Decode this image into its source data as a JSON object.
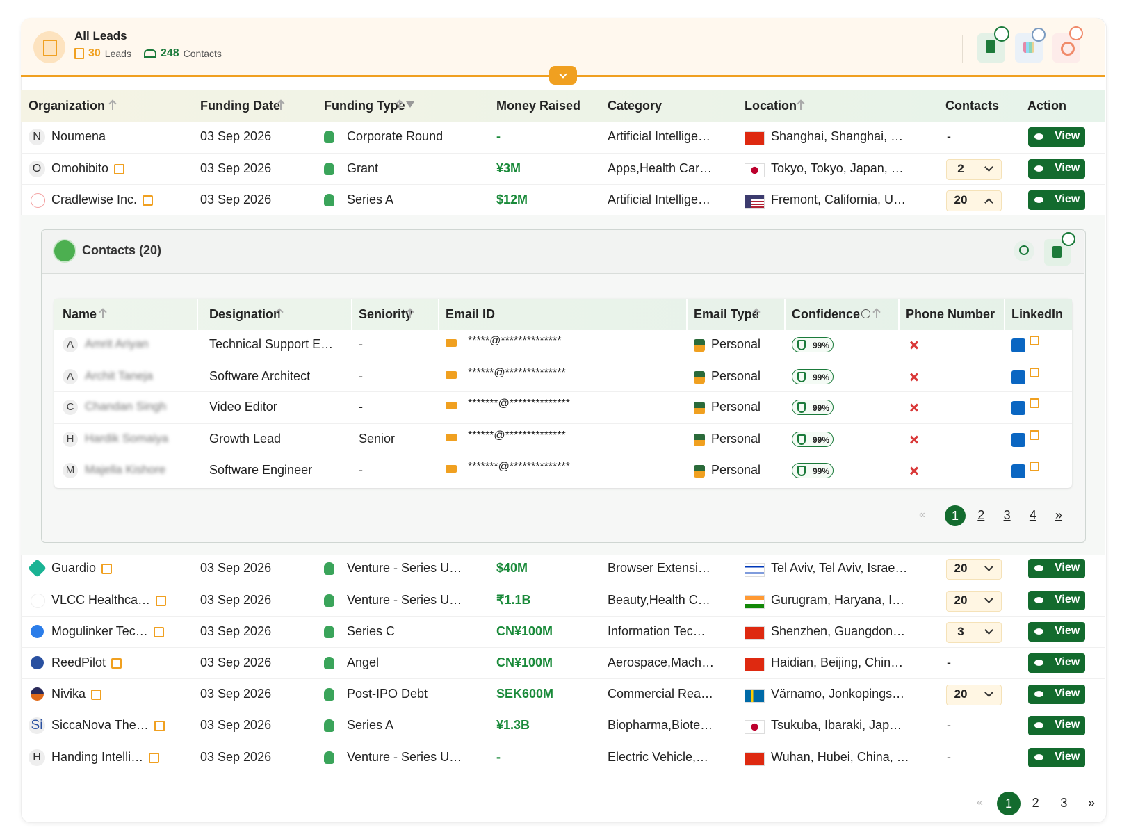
{
  "header": {
    "title": "All Leads",
    "leads_count": "30",
    "leads_label": "Leads",
    "contacts_count": "248",
    "contacts_label": "Contacts"
  },
  "table": {
    "columns": [
      "Organization",
      "Funding Date",
      "Funding Type",
      "Money Raised",
      "Category",
      "Location",
      "Contacts",
      "Action"
    ],
    "rows": [
      {
        "initial": "N",
        "organization": "Noumena",
        "funding_date": "03 Sep 2026",
        "funding_type": "Corporate Round",
        "money_raised": "-",
        "category": "Artificial Intellige…",
        "location": "Shanghai, Shanghai, …",
        "contacts": "-",
        "action": "View"
      },
      {
        "initial": "O",
        "organization": "Omohibito",
        "funding_date": "03 Sep 2026",
        "funding_type": "Grant",
        "money_raised": "¥3M",
        "category": "Apps,Health Car…",
        "location": "Tokyo, Tokyo, Japan, …",
        "contacts": "2",
        "action": "View"
      },
      {
        "organization": "Cradlewise Inc.",
        "funding_date": "03 Sep 2026",
        "funding_type": "Series A",
        "money_raised": "$12M",
        "category": "Artificial Intellige…",
        "location": "Fremont, California, U…",
        "contacts": "20",
        "action": "View"
      },
      {
        "organization": "Guardio",
        "funding_date": "03 Sep 2026",
        "funding_type": "Venture - Series U…",
        "money_raised": "$40M",
        "category": "Browser Extensi…",
        "location": "Tel Aviv, Tel Aviv, Israe…",
        "contacts": "20",
        "action": "View"
      },
      {
        "organization": "VLCC Healthca…",
        "funding_date": "03 Sep 2026",
        "funding_type": "Venture - Series U…",
        "money_raised": "₹1.1B",
        "category": "Beauty,Health C…",
        "location": "Gurugram, Haryana, I…",
        "contacts": "20",
        "action": "View"
      },
      {
        "organization": "Mogulinker Tec…",
        "funding_date": "03 Sep 2026",
        "funding_type": "Series C",
        "money_raised": "CN¥100M",
        "category": "Information Tec…",
        "location": "Shenzhen, Guangdon…",
        "contacts": "3",
        "action": "View"
      },
      {
        "organization": "ReedPilot",
        "funding_date": "03 Sep 2026",
        "funding_type": "Angel",
        "money_raised": "CN¥100M",
        "category": "Aerospace,Mach…",
        "location": "Haidian, Beijing, Chin…",
        "contacts": "-",
        "action": "View"
      },
      {
        "organization": "Nivika",
        "funding_date": "03 Sep 2026",
        "funding_type": "Post-IPO Debt",
        "money_raised": "SEK600M",
        "category": "Commercial Rea…",
        "location": "Värnamo, Jonkopings…",
        "contacts": "20",
        "action": "View"
      },
      {
        "initial": "Si",
        "organization": "SiccaNova The…",
        "funding_date": "03 Sep 2026",
        "funding_type": "Series A",
        "money_raised": "¥1.3B",
        "category": "Biopharma,Biote…",
        "location": "Tsukuba, Ibaraki, Jap…",
        "contacts": "-",
        "action": "View"
      },
      {
        "initial": "H",
        "organization": "Handing Intelli…",
        "funding_date": "03 Sep 2026",
        "funding_type": "Venture - Series U…",
        "money_raised": "-",
        "category": "Electric Vehicle,…",
        "location": "Wuhan, Hubei, China, …",
        "contacts": "-",
        "action": "View"
      }
    ]
  },
  "contacts_panel": {
    "title": "Contacts (20)",
    "columns": [
      "Name",
      "Designation",
      "Seniority",
      "Email ID",
      "Email Type",
      "Confidence",
      "Phone Number",
      "LinkedIn"
    ],
    "rows": [
      {
        "initial": "A",
        "name": "Amrit Ariyan",
        "designation": "Technical Support E…",
        "seniority": "-",
        "email": "*****@**************",
        "email_type": "Personal",
        "confidence": "99%"
      },
      {
        "initial": "A",
        "name": "Archit Taneja",
        "designation": "Software Architect",
        "seniority": "-",
        "email": "******@**************",
        "email_type": "Personal",
        "confidence": "99%"
      },
      {
        "initial": "C",
        "name": "Chandan Singh",
        "designation": "Video Editor",
        "seniority": "-",
        "email": "*******@**************",
        "email_type": "Personal",
        "confidence": "99%"
      },
      {
        "initial": "H",
        "name": "Hardik Somaiya",
        "designation": "Growth Lead",
        "seniority": "Senior",
        "email": "******@**************",
        "email_type": "Personal",
        "confidence": "99%"
      },
      {
        "initial": "M",
        "name": "Majella Kishore",
        "designation": "Software Engineer",
        "seniority": "-",
        "email": "*******@**************",
        "email_type": "Personal",
        "confidence": "99%"
      }
    ],
    "pagination": {
      "prev": "«",
      "pages": [
        "1",
        "2",
        "3",
        "4"
      ],
      "next": "»"
    }
  },
  "pagination": {
    "prev": "«",
    "pages": [
      "1",
      "2",
      "3"
    ],
    "next": "»"
  }
}
